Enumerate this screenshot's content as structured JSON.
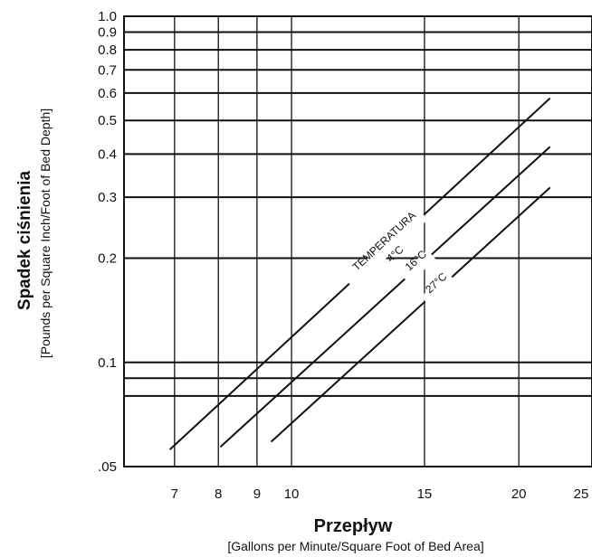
{
  "chart_data": {
    "type": "line",
    "x_scale": "log",
    "y_scale": "log",
    "xlim": [
      6,
      25
    ],
    "ylim": [
      0.05,
      1.0
    ],
    "grid": true,
    "xlabel": "Przepływ",
    "xlabel_sub": "[Gallons per Minute/Square Foot of Bed Area]",
    "ylabel": "Spadek ciśnienia",
    "ylabel_sub": "[Pounds per Square Inch/Foot of Bed Depth]",
    "x_ticks": [
      {
        "value": 7,
        "label": "7"
      },
      {
        "value": 8,
        "label": "8"
      },
      {
        "value": 9,
        "label": "9"
      },
      {
        "value": 10,
        "label": "10"
      },
      {
        "value": 15,
        "label": "15"
      },
      {
        "value": 20,
        "label": "20"
      },
      {
        "value": 25,
        "label": "25"
      }
    ],
    "y_ticks": [
      {
        "value": 0.05,
        "label": ".05"
      },
      {
        "value": 0.1,
        "label": "0.1"
      },
      {
        "value": 0.2,
        "label": "0.2"
      },
      {
        "value": 0.3,
        "label": "0.3"
      },
      {
        "value": 0.4,
        "label": "0.4"
      },
      {
        "value": 0.5,
        "label": "0.5"
      },
      {
        "value": 0.6,
        "label": "0.6"
      },
      {
        "value": 0.7,
        "label": "0.7"
      },
      {
        "value": 0.8,
        "label": "0.8"
      },
      {
        "value": 0.9,
        "label": "0.9"
      },
      {
        "value": 1.0,
        "label": "1.0"
      }
    ],
    "y_minor_gridlines": [
      0.08,
      0.09
    ],
    "series": [
      {
        "name": "TEMPERATURA 4°C",
        "x": [
          6.9,
          22
        ],
        "y": [
          0.056,
          0.58
        ]
      },
      {
        "name": "16°C",
        "x": [
          8.05,
          22
        ],
        "y": [
          0.057,
          0.42
        ]
      },
      {
        "name": "27°C",
        "x": [
          9.4,
          22
        ],
        "y": [
          0.059,
          0.32
        ]
      }
    ],
    "annotations": [
      {
        "text": "TEMPERATURA",
        "series": 0
      },
      {
        "text": "4°C",
        "series": 0
      },
      {
        "text": "16°C",
        "series": 1
      },
      {
        "text": "27°C",
        "series": 2
      }
    ]
  }
}
